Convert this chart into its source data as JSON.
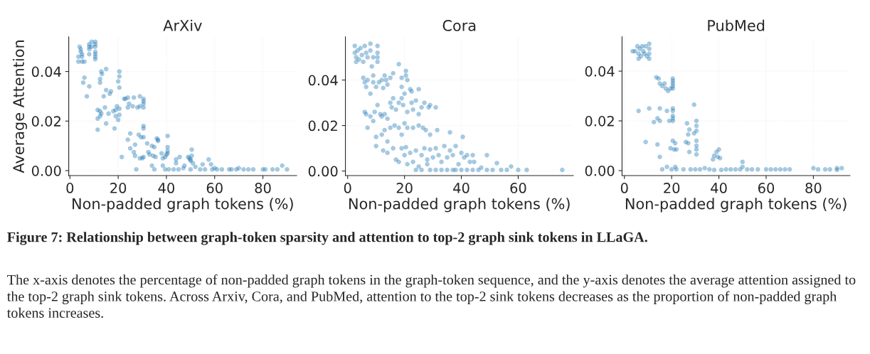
{
  "chart_data": [
    {
      "type": "scatter",
      "title": "ArXiv",
      "xlabel": "Non-padded graph tokens (%)",
      "ylabel": "Average Attention",
      "color": "#1f77b4",
      "marker": "circle",
      "grid": true,
      "xlim": [
        -0.5,
        94
      ],
      "ylim": [
        -0.002,
        0.054
      ],
      "xticks": [
        0,
        20,
        40,
        60,
        80
      ],
      "yticks": [
        {
          "value": 0,
          "label": "0.00"
        },
        {
          "value": 0.02,
          "label": "0.02"
        },
        {
          "value": 0.04,
          "label": "0.04"
        }
      ],
      "x": [
        4,
        4.5,
        4.5,
        5,
        5,
        5,
        3.5,
        3.5,
        6,
        8,
        8,
        8,
        8,
        9,
        9,
        10.5,
        10.5,
        10.5,
        10.5,
        10.5,
        10.5,
        10.5,
        6,
        5.5,
        8,
        7,
        12.5,
        12.5,
        13,
        15,
        13.3,
        14,
        15,
        16.5,
        17,
        20,
        20.5,
        20.5,
        20.5,
        11.5,
        12.5,
        12.5,
        13,
        11.5,
        14.5,
        15,
        16,
        18,
        19,
        19.5,
        19,
        20,
        20.5,
        20.5,
        18.5,
        11.5,
        22.5,
        23,
        24,
        24.5,
        24,
        26,
        26.5,
        28,
        29,
        29,
        30.5,
        30.5,
        30.5,
        30.5,
        30.5,
        30.5,
        25,
        28.5,
        29.5,
        30.5,
        24,
        25,
        26.5,
        27,
        27,
        29,
        30,
        30.5,
        32,
        32.5,
        33,
        34,
        34.5,
        35,
        36,
        36.5,
        36.5,
        35.5,
        38,
        38.5,
        39.5,
        40,
        40.5,
        40.5,
        40.5,
        40.5,
        21.5,
        27.5,
        34,
        35,
        38.5,
        39.5,
        41,
        43,
        44,
        44,
        45.5,
        45,
        47,
        47.5,
        49,
        49.5,
        50,
        50.5,
        50.5,
        50,
        51,
        50,
        52,
        54,
        55,
        56,
        57.5,
        58.5,
        59,
        60,
        61,
        63,
        66,
        67,
        69,
        70,
        72,
        74,
        76,
        80,
        81,
        84,
        86,
        88,
        90
      ],
      "values": [
        0.05,
        0.049,
        0.048,
        0.047,
        0.046,
        0.044,
        0.046,
        0.044,
        0.044,
        0.051,
        0.05,
        0.049,
        0.047,
        0.05,
        0.052,
        0.052,
        0.051,
        0.05,
        0.048,
        0.047,
        0.046,
        0.045,
        0.0375,
        0.0355,
        0.034,
        0.03,
        0.037,
        0.0355,
        0.04,
        0.041,
        0.039,
        0.03,
        0.0325,
        0.031,
        0.032,
        0.036,
        0.04,
        0.038,
        0.0335,
        0.0245,
        0.024,
        0.022,
        0.023,
        0.021,
        0.0255,
        0.019,
        0.023,
        0.024,
        0.0245,
        0.026,
        0.022,
        0.0205,
        0.0225,
        0.025,
        0.017,
        0.0165,
        0.029,
        0.029,
        0.0295,
        0.027,
        0.0255,
        0.026,
        0.0295,
        0.0255,
        0.03,
        0.026,
        0.029,
        0.028,
        0.027,
        0.0255,
        0.018,
        0.017,
        0.015,
        0.0145,
        0.0135,
        0.0135,
        0.0125,
        0.009,
        0.0075,
        0.0105,
        0.006,
        0.005,
        0.005,
        0.0055,
        0.011,
        0.0075,
        0.0065,
        0.01,
        0.006,
        0.0095,
        0.013,
        0.0125,
        0.012,
        0.0055,
        0.007,
        0.005,
        0.0055,
        0.0065,
        0.014,
        0.0095,
        0.008,
        0.007,
        0.0055,
        0.0005,
        0.002,
        0.0005,
        0.002,
        0.0005,
        0.0005,
        0.0005,
        0.003,
        0.0045,
        0.0055,
        0.0005,
        0.001,
        0.002,
        0.0055,
        0.005,
        0.0045,
        0.0085,
        0.006,
        0.004,
        0.003,
        0.0005,
        0.0015,
        0.0005,
        0.0025,
        0.0005,
        0.0045,
        0.0025,
        0.0005,
        0.001,
        0.0005,
        0.0005,
        0.0005,
        0.0005,
        0.0005,
        0.001,
        0.0005,
        0.0005,
        0.0005,
        0.0005,
        0.0005,
        0.0005,
        0.0005,
        0.002,
        0.0005
      ],
      "annotations": [
        "Figure 7: Relationship between graph-token sparsity and attention to top-2 graph sink tokens in LLaGA.",
        "The x-axis denotes the percentage of non-padded graph tokens in the graph-token sequence, and the y-axis denotes the average attention assigned to the top-2 graph sink tokens. Across Arxiv, Cora, and PubMed, attention to the top-2 sink tokens decreases as the proportion of non-padded graph tokens increases."
      ]
    },
    {
      "type": "scatter",
      "title": "Cora",
      "xlabel": "Non-padded graph tokens (%)",
      "color": "#1f77b4",
      "marker": "circle",
      "grid": true,
      "xlim": [
        -0.8,
        79.4
      ],
      "ylim": [
        -0.002,
        0.059
      ],
      "xticks": [
        0,
        20,
        40,
        60
      ],
      "yticks": [
        {
          "value": 0,
          "label": "0.00"
        },
        {
          "value": 0.02,
          "label": "0.02"
        },
        {
          "value": 0.04,
          "label": "0.04"
        }
      ],
      "x": [
        2.5,
        2.5,
        3,
        3.5,
        4,
        4.5,
        5,
        5.5,
        6,
        6.5,
        7,
        8,
        8,
        9,
        10.5,
        10.5,
        10.5,
        10.5,
        3,
        5.5,
        6,
        6.5,
        7,
        8,
        8.5,
        9,
        9,
        10,
        11,
        12,
        12.5,
        13,
        13.5,
        14,
        15,
        16,
        18,
        19,
        19,
        20.5,
        20.5,
        21,
        22,
        22.5,
        25,
        6,
        6.5,
        7,
        8,
        9,
        9.5,
        10.5,
        11.5,
        12,
        13,
        14,
        15,
        15.5,
        16,
        17,
        18,
        19,
        19.5,
        20,
        21,
        22.5,
        23,
        24,
        25,
        26,
        27,
        28.5,
        29,
        31,
        10,
        10,
        12,
        13,
        14,
        15,
        16.5,
        18,
        19,
        20,
        21,
        23,
        25,
        26.5,
        27.5,
        29,
        31.5,
        36,
        40.5,
        12.5,
        14,
        16,
        17,
        18,
        19,
        20,
        20.5,
        21,
        22,
        23,
        24,
        25,
        26,
        27,
        28,
        28,
        29,
        30,
        31,
        32,
        33,
        34,
        35,
        36,
        37,
        38,
        39,
        40,
        41,
        42,
        43,
        44.5,
        44,
        24,
        26,
        29,
        31,
        33,
        35,
        37,
        38,
        40,
        42,
        44,
        46,
        47,
        49,
        49,
        51,
        52.5,
        54,
        56,
        57.5,
        60,
        63,
        75.5
      ],
      "values": [
        0.055,
        0.052,
        0.05,
        0.053,
        0.049,
        0.054,
        0.051,
        0.048,
        0.055,
        0.052,
        0.05,
        0.056,
        0.053,
        0.05,
        0.055,
        0.052,
        0.05,
        0.048,
        0.048,
        0.041,
        0.039,
        0.037,
        0.04,
        0.034,
        0.046,
        0.042,
        0.039,
        0.037,
        0.039,
        0.04,
        0.0365,
        0.042,
        0.04,
        0.038,
        0.041,
        0.043,
        0.047,
        0.041,
        0.037,
        0.044,
        0.042,
        0.04,
        0.036,
        0.035,
        0.036,
        0.026,
        0.025,
        0.019,
        0.024,
        0.022,
        0.026,
        0.029,
        0.025,
        0.024,
        0.025,
        0.023,
        0.03,
        0.028,
        0.032,
        0.027,
        0.03,
        0.032,
        0.029,
        0.034,
        0.026,
        0.03,
        0.027,
        0.031,
        0.025,
        0.028,
        0.03,
        0.028,
        0.029,
        0.028,
        0.015,
        0.011,
        0.016,
        0.018,
        0.013,
        0.019,
        0.02,
        0.019,
        0.016,
        0.021,
        0.019,
        0.019,
        0.02,
        0.019,
        0.018,
        0.016,
        0.018,
        0.017,
        0.015,
        0.009,
        0.008,
        0.01,
        0.005,
        0.004,
        0.01,
        0.007,
        0.0105,
        0.003,
        0.008,
        0.004,
        0.009,
        0.002,
        0.007,
        0.01,
        0.005,
        0.003,
        0.0095,
        0.006,
        0.01,
        0.007,
        0.004,
        0.011,
        0.006,
        0.009,
        0.007,
        0.011,
        0.003,
        0.008,
        0.006,
        0.007,
        0.004,
        0.004,
        0.007,
        0.0005,
        0.0005,
        0.0005,
        0.0005,
        0.0005,
        0.0005,
        0.0005,
        0.0005,
        0.0005,
        0.0005,
        0.0005,
        0.0005,
        0.0015,
        0.007,
        0.0005,
        0.0005,
        0.0035,
        0.0005,
        0.0005,
        0.002,
        0.0005,
        0.0005,
        0.0005
      ]
    },
    {
      "type": "scatter",
      "title": "PubMed",
      "xlabel": "Non-padded graph tokens (%)",
      "color": "#1f77b4",
      "marker": "circle",
      "grid": true,
      "xlim": [
        -1,
        95.5
      ],
      "ylim": [
        -0.002,
        0.0538
      ],
      "xticks": [
        0,
        20,
        40,
        60,
        80
      ],
      "yticks": [
        {
          "value": 0,
          "label": "0.00"
        },
        {
          "value": 0.02,
          "label": "0.02"
        },
        {
          "value": 0.04,
          "label": "0.04"
        }
      ],
      "x": [
        3.5,
        4.5,
        5.5,
        6,
        6.5,
        7,
        7.5,
        8,
        8.5,
        9,
        9.5,
        10.5,
        10.5,
        10.5,
        10.5,
        6,
        13.5,
        14.5,
        15,
        16,
        17,
        17.5,
        18.5,
        19.5,
        20.5,
        20.5,
        20.5,
        20.5,
        20.5,
        6,
        10.5,
        12.5,
        14,
        15,
        15,
        18,
        19,
        20.5,
        20.5,
        20.5,
        20.5,
        20.5,
        9,
        14,
        15,
        19.5,
        20.5,
        21,
        22,
        21.5,
        26.5,
        27,
        26,
        27,
        27.5,
        27.5,
        29.5,
        29.5,
        30.5,
        30.5,
        30.5,
        30.5,
        30.5,
        30.5,
        30.5,
        37.5,
        38,
        39,
        39.5,
        40,
        40.5,
        16,
        18,
        20,
        21.5,
        22,
        25,
        28,
        30,
        32,
        34,
        36,
        38,
        41,
        43,
        45,
        47,
        49,
        50,
        50,
        52,
        54,
        56.5,
        60,
        62,
        64,
        66,
        68,
        70,
        80,
        82,
        85,
        87,
        90,
        90,
        92
      ],
      "values": [
        0.048,
        0.048,
        0.05,
        0.047,
        0.049,
        0.046,
        0.05,
        0.048,
        0.047,
        0.05,
        0.046,
        0.051,
        0.049,
        0.047,
        0.045,
        0.045,
        0.0375,
        0.037,
        0.035,
        0.034,
        0.035,
        0.033,
        0.032,
        0.033,
        0.036,
        0.035,
        0.034,
        0.033,
        0.037,
        0.024,
        0.025,
        0.0195,
        0.021,
        0.025,
        0.02,
        0.024,
        0.02,
        0.025,
        0.024,
        0.022,
        0.02,
        0.021,
        0.0115,
        0.0105,
        0.0055,
        0.009,
        0.012,
        0.0085,
        0.0085,
        0.011,
        0.019,
        0.0145,
        0.0115,
        0.011,
        0.0165,
        0.0075,
        0.0265,
        0.015,
        0.02,
        0.018,
        0.016,
        0.012,
        0.01,
        0.0085,
        0.0065,
        0.0045,
        0.006,
        0.0075,
        0.0055,
        0.0085,
        0.005,
        0.0005,
        0.0015,
        0.0005,
        0.0015,
        0.0005,
        0.0005,
        0.0005,
        0.0005,
        0.0005,
        0.001,
        0.0005,
        0.0003,
        0.0003,
        0.0005,
        0.0005,
        0.0005,
        0.0005,
        0.0035,
        0.0015,
        0.0005,
        0.0005,
        0.0005,
        0.0005,
        0.0005,
        0.0005,
        0.0005,
        0.0005,
        0.0005,
        0.001,
        0.0005,
        0.0005,
        0.0005,
        0.0003,
        0.001,
        0.001
      ]
    }
  ]
}
